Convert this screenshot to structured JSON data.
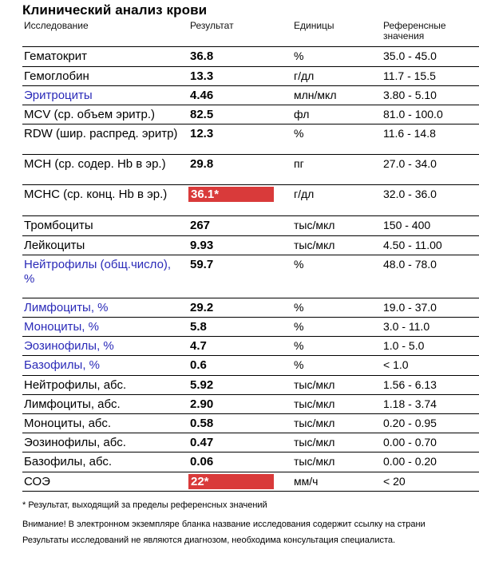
{
  "title": "Клинический анализ крови",
  "headers": {
    "test": "Исследование",
    "result": "Результат",
    "units": "Единицы",
    "reference": "Референсные значения"
  },
  "rows": [
    {
      "name": "Гематокрит",
      "result": "36.8",
      "units": "%",
      "ref": "35.0 - 45.0",
      "blue": false,
      "flag": false
    },
    {
      "name": "Гемоглобин",
      "result": "13.3",
      "units": "г/дл",
      "ref": "11.7 - 15.5",
      "blue": false,
      "flag": false
    },
    {
      "name": "Эритроциты",
      "result": "4.46",
      "units": "млн/мкл",
      "ref": "3.80 - 5.10",
      "blue": true,
      "flag": false
    },
    {
      "name": "MCV (ср. объем эритр.)",
      "result": "82.5",
      "units": "фл",
      "ref": "81.0 - 100.0",
      "blue": false,
      "flag": false
    },
    {
      "name": "RDW (шир. распред. эритр)",
      "result": "12.3",
      "units": "%",
      "ref": "11.6 - 14.8",
      "blue": false,
      "flag": false
    },
    {
      "name": "MCH (ср. содер. Hb в эр.)",
      "result": "29.8",
      "units": "пг",
      "ref": "27.0 - 34.0",
      "blue": false,
      "flag": false
    },
    {
      "name": "MCHC (ср. конц. Hb в эр.)",
      "result": "36.1*",
      "units": "г/дл",
      "ref": "32.0 - 36.0",
      "blue": false,
      "flag": true
    },
    {
      "name": "Тромбоциты",
      "result": "267",
      "units": "тыс/мкл",
      "ref": "150 - 400",
      "blue": false,
      "flag": false
    },
    {
      "name": "Лейкоциты",
      "result": "9.93",
      "units": "тыс/мкл",
      "ref": "4.50 - 11.00",
      "blue": false,
      "flag": false
    },
    {
      "name": "Нейтрофилы (общ.число), %",
      "result": "59.7",
      "units": "%",
      "ref": "48.0 - 78.0",
      "blue": true,
      "flag": false
    },
    {
      "name": "Лимфоциты, %",
      "result": "29.2",
      "units": "%",
      "ref": "19.0 - 37.0",
      "blue": true,
      "flag": false
    },
    {
      "name": "Моноциты, %",
      "result": "5.8",
      "units": "%",
      "ref": "3.0 - 11.0",
      "blue": true,
      "flag": false
    },
    {
      "name": "Эозинофилы, %",
      "result": "4.7",
      "units": "%",
      "ref": "1.0 - 5.0",
      "blue": true,
      "flag": false
    },
    {
      "name": "Базофилы, %",
      "result": "0.6",
      "units": "%",
      "ref": "< 1.0",
      "blue": true,
      "flag": false
    },
    {
      "name": "Нейтрофилы, абс.",
      "result": "5.92",
      "units": "тыс/мкл",
      "ref": "1.56 - 6.13",
      "blue": false,
      "flag": false
    },
    {
      "name": "Лимфоциты, абс.",
      "result": "2.90",
      "units": "тыс/мкл",
      "ref": "1.18 - 3.74",
      "blue": false,
      "flag": false
    },
    {
      "name": "Моноциты, абс.",
      "result": "0.58",
      "units": "тыс/мкл",
      "ref": "0.20 - 0.95",
      "blue": false,
      "flag": false
    },
    {
      "name": "Эозинофилы, абс.",
      "result": "0.47",
      "units": "тыс/мкл",
      "ref": "0.00 - 0.70",
      "blue": false,
      "flag": false
    },
    {
      "name": "Базофилы, абс.",
      "result": "0.06",
      "units": "тыс/мкл",
      "ref": "0.00 - 0.20",
      "blue": false,
      "flag": false
    },
    {
      "name": "СОЭ",
      "result": "22*",
      "units": "мм/ч",
      "ref": "< 20",
      "blue": false,
      "flag": true
    }
  ],
  "footnote": "* Результат, выходящий за пределы референсных значений",
  "notice1": "Внимание! В электронном экземпляре бланка название исследования содержит ссылку на страни",
  "notice2": "Результаты исследований не являются диагнозом, необходима консультация специалиста."
}
